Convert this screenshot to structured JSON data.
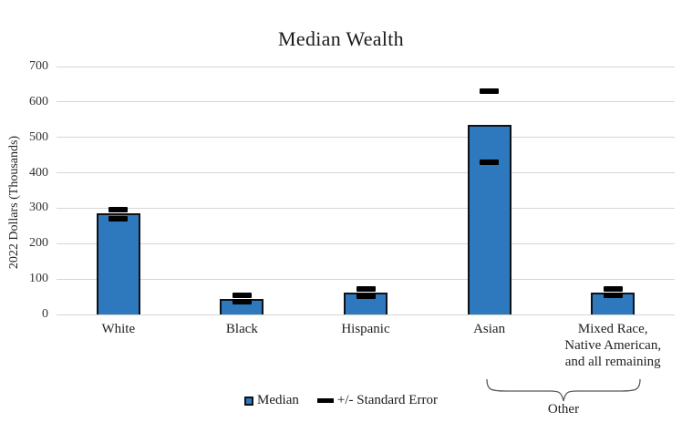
{
  "chart_data": {
    "type": "bar",
    "title": "Median Wealth",
    "xlabel": "",
    "ylabel": "2022 Dollars (Thousands)",
    "ylim": [
      0,
      700
    ],
    "ytick_step": 100,
    "grid": true,
    "legend_position": "bottom-center",
    "categories": [
      "White",
      "Black",
      "Hispanic",
      "Asian",
      "Mixed Race,\nNative American,\nand all remaining"
    ],
    "series": [
      {
        "name": "Median",
        "type": "bar",
        "values": [
          285,
          45,
          62,
          535,
          63
        ]
      },
      {
        "name": "+/- Standard Error",
        "type": "marker",
        "upper": [
          296,
          54,
          73,
          630,
          72
        ],
        "lower": [
          270,
          36,
          51,
          430,
          55
        ]
      }
    ],
    "legend": [
      {
        "label": "Median",
        "swatch": "square",
        "color": "#2e78be"
      },
      {
        "label": "+/- Standard Error",
        "swatch": "dash",
        "color": "#000000"
      }
    ],
    "annotation": {
      "label": "Other",
      "spans_categories": [
        "Asian",
        "Mixed Race, Native American, and all remaining"
      ]
    },
    "colors": {
      "bar_fill": "#2e78be",
      "bar_border": "#0d1219",
      "marker": "#000000",
      "gridline": "#d6d6d6",
      "text": "#1f1f1f",
      "bracket": "#595959"
    }
  }
}
